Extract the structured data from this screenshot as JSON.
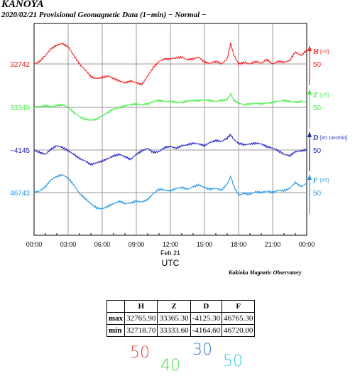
{
  "header": {
    "station": "KANOYA",
    "subtitle": "2020/02/21  Provisional Geomagnetic Data (1−min)  − Normal −"
  },
  "chart_data": {
    "type": "line",
    "x_axis": {
      "ticks": [
        "00:00",
        "03:00",
        "06:00",
        "09:00",
        "12:00",
        "15:00",
        "18:00",
        "21:00",
        "00:00"
      ],
      "date_label": "Feb 21",
      "label": "UTC",
      "range_hours": [
        0,
        24
      ]
    },
    "grid": true,
    "series": [
      {
        "name": "H",
        "unit": "[nT]",
        "baseline": "32742",
        "scale": "50",
        "color": "#ff2020",
        "x": [
          0,
          0.5,
          1,
          1.5,
          2,
          2.5,
          3,
          3.5,
          4,
          4.5,
          5,
          5.5,
          6,
          6.5,
          7,
          7.5,
          8,
          8.5,
          9,
          9.5,
          10,
          10.5,
          11,
          11.5,
          12,
          12.5,
          13,
          13.5,
          14,
          14.5,
          15,
          15.5,
          16,
          16.5,
          17,
          17.3,
          17.6,
          18,
          18.5,
          19,
          19.5,
          20,
          20.5,
          21,
          21.5,
          22,
          22.5,
          23,
          23.5,
          24
        ],
        "y": [
          32742,
          32745,
          32752,
          32760,
          32764,
          32766,
          32762,
          32752,
          32742,
          32735,
          32727,
          32725,
          32726,
          32728,
          32725,
          32722,
          32720,
          32722,
          32720,
          32718,
          32728,
          32738,
          32745,
          32748,
          32748,
          32749,
          32750,
          32747,
          32748,
          32750,
          32744,
          32743,
          32745,
          32742,
          32748,
          32766,
          32752,
          32742,
          32744,
          32742,
          32745,
          32743,
          32747,
          32742,
          32745,
          32744,
          32746,
          32756,
          32752,
          32758
        ]
      },
      {
        "name": "Z",
        "unit": "[nT]",
        "baseline": "33349",
        "scale": "50",
        "color": "#44ee44",
        "x": [
          0,
          0.5,
          1,
          1.5,
          2,
          2.5,
          3,
          3.5,
          4,
          4.5,
          5,
          5.5,
          6,
          6.5,
          7,
          7.5,
          8,
          8.5,
          9,
          9.5,
          10,
          10.5,
          11,
          11.5,
          12,
          12.5,
          13,
          13.5,
          14,
          14.5,
          15,
          15.5,
          16,
          16.5,
          17,
          17.3,
          17.6,
          18,
          18.5,
          19,
          19.5,
          20,
          20.5,
          21,
          21.5,
          22,
          22.5,
          23,
          23.5,
          24
        ],
        "y": [
          33349,
          33350,
          33351,
          33350,
          33351,
          33352,
          33349,
          33343,
          33338,
          33335,
          33334,
          33335,
          33339,
          33343,
          33347,
          33349,
          33351,
          33352,
          33353,
          33352,
          33353,
          33356,
          33357,
          33356,
          33356,
          33355,
          33355,
          33356,
          33357,
          33357,
          33358,
          33357,
          33356,
          33357,
          33358,
          33365,
          33357,
          33354,
          33352,
          33353,
          33354,
          33353,
          33354,
          33355,
          33356,
          33357,
          33356,
          33355,
          33356,
          33355
        ]
      },
      {
        "name": "D",
        "unit": "[x0.1arcmin]",
        "baseline": "−4145",
        "scale": "50",
        "color": "#2222cc",
        "x": [
          0,
          0.5,
          1,
          1.5,
          2,
          2.5,
          3,
          3.5,
          4,
          4.5,
          5,
          5.5,
          6,
          6.5,
          7,
          7.5,
          8,
          8.5,
          9,
          9.5,
          10,
          10.5,
          11,
          11.5,
          12,
          12.5,
          13,
          13.5,
          14,
          14.5,
          15,
          15.5,
          16,
          16.5,
          17,
          17.3,
          17.6,
          18,
          18.5,
          19,
          19.5,
          20,
          20.5,
          21,
          21.5,
          22,
          22.5,
          23,
          23.5,
          24
        ],
        "y": [
          -4145,
          -4148,
          -4150,
          -4144,
          -4140,
          -4142,
          -4146,
          -4150,
          -4155,
          -4158,
          -4162,
          -4160,
          -4158,
          -4155,
          -4152,
          -4150,
          -4153,
          -4156,
          -4150,
          -4146,
          -4143,
          -4148,
          -4147,
          -4142,
          -4141,
          -4143,
          -4140,
          -4139,
          -4137,
          -4138,
          -4140,
          -4136,
          -4134,
          -4135,
          -4131,
          -4127,
          -4133,
          -4137,
          -4139,
          -4138,
          -4137,
          -4138,
          -4141,
          -4143,
          -4146,
          -4150,
          -4152,
          -4147,
          -4146,
          -4145
        ]
      },
      {
        "name": "F",
        "unit": "[nT]",
        "baseline": "46743",
        "scale": "50",
        "color": "#2299ee",
        "x": [
          0,
          0.5,
          1,
          1.5,
          2,
          2.5,
          3,
          3.5,
          4,
          4.5,
          5,
          5.5,
          6,
          6.5,
          7,
          7.5,
          8,
          8.5,
          9,
          9.5,
          10,
          10.5,
          11,
          11.5,
          12,
          12.5,
          13,
          13.5,
          14,
          14.5,
          15,
          15.5,
          16,
          16.5,
          17,
          17.3,
          17.6,
          18,
          18.5,
          19,
          19.5,
          20,
          20.5,
          21,
          21.5,
          22,
          22.5,
          23,
          23.5,
          24
        ],
        "y": [
          46743,
          46745,
          46750,
          46758,
          46762,
          46764,
          46760,
          46752,
          46742,
          46736,
          46730,
          46725,
          46724,
          46727,
          46730,
          46733,
          46730,
          46731,
          46733,
          46732,
          46735,
          46742,
          46747,
          46746,
          46745,
          46748,
          46749,
          46747,
          46750,
          46752,
          46749,
          46747,
          46748,
          46746,
          46753,
          46762,
          46750,
          46740,
          46742,
          46741,
          46744,
          46743,
          46745,
          46743,
          46746,
          46745,
          46748,
          46755,
          46750,
          46754
        ]
      }
    ]
  },
  "credit": "Kakioka Magnetic Observatory",
  "stats": {
    "headers": [
      "H",
      "Z",
      "D",
      "F"
    ],
    "rows": [
      {
        "label": "max",
        "values": [
          "32765.90",
          "33365.30",
          "-4125.30",
          "46765.30"
        ]
      },
      {
        "label": "min",
        "values": [
          "32718.70",
          "33333.60",
          "-4164.60",
          "46720.00"
        ]
      }
    ]
  },
  "legend_marks": [
    {
      "text": "50",
      "color": "#ee4444"
    },
    {
      "text": "40",
      "color": "#44dd44"
    },
    {
      "text": "30",
      "color": "#3377dd"
    },
    {
      "text": "50",
      "color": "#33ccee"
    }
  ]
}
